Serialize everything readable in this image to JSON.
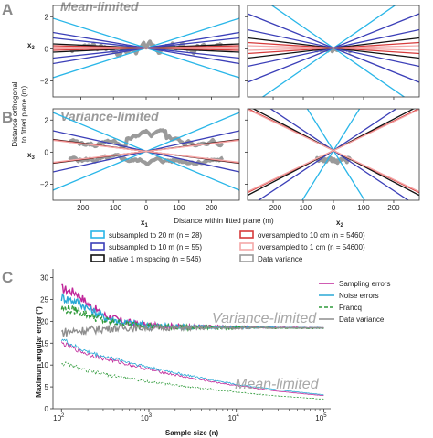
{
  "panel_labels": {
    "a": "A",
    "b": "B",
    "c": "C"
  },
  "regimes": {
    "mean": "Mean-limited",
    "variance": "Variance-limited"
  },
  "axes": {
    "ylabel_top": "Distance orthogonal",
    "ylabel_bottom": "to fitted plane (m)",
    "x3_main": "x",
    "x3_sub": "3",
    "x1_main": "x",
    "x1_sub": "1",
    "x2_main": "x",
    "x2_sub": "2",
    "xlabel_mid": "Distance within fitted plane (m)",
    "ab_yticks": [
      "2",
      "0",
      "−2"
    ],
    "ab_xticks": [
      "−200",
      "−100",
      "0",
      "100",
      "200"
    ],
    "c_ylabel": "Maximum angular error (°)",
    "c_xlabel": "Sample size (n)",
    "c_yticks": [
      "0",
      "5",
      "10",
      "15",
      "20",
      "25",
      "30"
    ],
    "c_xticks": [
      {
        "base": "10",
        "exp": "2"
      },
      {
        "base": "10",
        "exp": "3"
      },
      {
        "base": "10",
        "exp": "4"
      },
      {
        "base": "10",
        "exp": "5"
      }
    ]
  },
  "legend_ab": [
    {
      "label": "subsampled to 20 m (n = 28)",
      "color": "#29b6e8"
    },
    {
      "label": "subsampled to 10 m (n = 55)",
      "color": "#3b3fb8"
    },
    {
      "label": "native 1 m spacing (n = 546)",
      "color": "#111111"
    },
    {
      "label": "oversampled to 10 cm (n = 5460)",
      "color": "#d63a3a"
    },
    {
      "label": "oversampled to 1 cm (n = 54600)",
      "color": "#f4a8a8"
    },
    {
      "label": "Data variance",
      "color": "#9a9a9a"
    }
  ],
  "legend_c": [
    {
      "label": "Sampling errors",
      "color": "#c0279a"
    },
    {
      "label": "Noise errors",
      "color": "#2aa9d6"
    },
    {
      "label": "Francq",
      "color": "#2f9a3a"
    },
    {
      "label": "Data variance",
      "color": "#8e8e8e"
    }
  ],
  "chart_data": [
    {
      "panel": "A-left",
      "type": "line",
      "title": "Mean-limited",
      "xlabel": "x1",
      "ylabel": "x3",
      "xlim": [
        -285,
        285
      ],
      "ylim": [
        -3.0,
        2.7
      ],
      "series": [
        {
          "color": "#29b6e8",
          "slopes": [
            0.0065,
            -0.0065
          ]
        },
        {
          "color": "#3b3fb8",
          "slopes": [
            0.0022,
            -0.0022,
            0.0034,
            -0.0034
          ]
        },
        {
          "color": "#111111",
          "slopes": [
            0.0009,
            -0.0009
          ]
        },
        {
          "color": "#d63a3a",
          "slopes": [
            0.0005,
            -0.0005
          ]
        },
        {
          "color": "#f4a8a8",
          "slopes": [
            0.0002,
            -0.0002
          ]
        }
      ],
      "lines_intercept": 0.05
    },
    {
      "panel": "A-right",
      "type": "line",
      "xlabel": "x2",
      "ylabel": "x3",
      "xlim": [
        -285,
        285
      ],
      "ylim": [
        -3.0,
        2.7
      ],
      "series": [
        {
          "color": "#29b6e8",
          "slopes": [
            0.013,
            -0.013
          ]
        },
        {
          "color": "#3b3fb8",
          "slopes": [
            0.0075,
            -0.0075,
            0.004,
            -0.004
          ]
        },
        {
          "color": "#111111",
          "slopes": [
            0.0022,
            -0.0022
          ]
        },
        {
          "color": "#d63a3a",
          "slopes": [
            0.0012,
            -0.0012
          ]
        },
        {
          "color": "#f4a8a8",
          "slopes": [
            0.0005,
            -0.0005
          ]
        }
      ],
      "lines_intercept": 0.05
    },
    {
      "panel": "B-left",
      "type": "line",
      "title": "Variance-limited",
      "xlabel": "x1",
      "ylabel": "x3",
      "xlim": [
        -285,
        285
      ],
      "ylim": [
        -3.0,
        2.7
      ],
      "series": [
        {
          "color": "#29b6e8",
          "slopes": [
            0.0085,
            -0.0085
          ]
        },
        {
          "color": "#3b3fb8",
          "slopes": [
            0.0045,
            -0.0045
          ]
        },
        {
          "color": "#111111",
          "slopes": [
            0.0026,
            -0.0026
          ]
        },
        {
          "color": "#d63a3a",
          "slopes": [
            0.0025,
            -0.0025
          ]
        },
        {
          "color": "#f4a8a8",
          "slopes": [
            0.0024,
            -0.0024
          ]
        }
      ],
      "lines_intercept": 0.05
    },
    {
      "panel": "B-right",
      "type": "line",
      "xlabel": "x2",
      "ylabel": "x3",
      "xlim": [
        -285,
        285
      ],
      "ylim": [
        -3.0,
        2.7
      ],
      "series": [
        {
          "color": "#29b6e8",
          "slopes": [
            0.03,
            -0.03
          ]
        },
        {
          "color": "#3b3fb8",
          "slopes": [
            0.0125,
            -0.0125
          ]
        },
        {
          "color": "#111111",
          "slopes": [
            0.0098,
            -0.0098
          ]
        },
        {
          "color": "#d63a3a",
          "slopes": [
            0.0092,
            -0.0092
          ]
        },
        {
          "color": "#f4a8a8",
          "slopes": [
            0.009,
            -0.009
          ]
        }
      ],
      "lines_intercept": 0.1
    },
    {
      "panel": "C",
      "type": "line",
      "xlabel": "Sample size (n)",
      "ylabel": "Maximum angular error (°)",
      "xscale": "log",
      "xlim": [
        80,
        120000
      ],
      "ylim": [
        0,
        32
      ],
      "regimes": [
        "Variance-limited",
        "Mean-limited"
      ],
      "series": [
        {
          "name": "Sampling errors",
          "regime": "Variance-limited",
          "x": [
            100,
            150,
            200,
            300,
            500,
            1000,
            3000,
            10000,
            100000
          ],
          "y": [
            27.5,
            26.5,
            24.0,
            21.5,
            20.0,
            19.0,
            18.8,
            18.7,
            18.5
          ]
        },
        {
          "name": "Noise errors",
          "regime": "Variance-limited",
          "x": [
            100,
            150,
            200,
            300,
            500,
            1000,
            3000,
            10000,
            100000
          ],
          "y": [
            25.5,
            24.5,
            23.0,
            21.0,
            19.8,
            19.0,
            18.8,
            18.6,
            18.5
          ]
        },
        {
          "name": "Francq",
          "regime": "Variance-limited",
          "x": [
            100,
            150,
            200,
            300,
            500,
            1000,
            3000,
            10000,
            100000
          ],
          "y": [
            23.0,
            22.5,
            21.5,
            20.2,
            19.5,
            18.9,
            18.6,
            18.5,
            18.4
          ]
        },
        {
          "name": "Data variance",
          "regime": "Variance-limited",
          "x": [
            100,
            150,
            200,
            300,
            500,
            1000,
            3000,
            10000,
            100000
          ],
          "y": [
            17.5,
            17.8,
            18.0,
            18.3,
            18.5,
            18.5,
            18.5,
            18.5,
            18.5
          ]
        },
        {
          "name": "Sampling errors",
          "regime": "Mean-limited",
          "x": [
            100,
            150,
            200,
            300,
            500,
            1000,
            3000,
            10000,
            30000,
            100000
          ],
          "y": [
            15.0,
            13.5,
            12.5,
            11.5,
            10.5,
            9.0,
            7.0,
            5.3,
            4.0,
            3.0
          ]
        },
        {
          "name": "Noise errors",
          "regime": "Mean-limited",
          "x": [
            100,
            150,
            200,
            300,
            500,
            1000,
            3000,
            10000,
            30000,
            100000
          ],
          "y": [
            16.0,
            14.0,
            13.0,
            12.0,
            11.0,
            9.5,
            7.5,
            5.6,
            4.3,
            3.2
          ]
        },
        {
          "name": "Francq",
          "regime": "Mean-limited",
          "x": [
            100,
            150,
            200,
            300,
            500,
            1000,
            3000,
            10000,
            30000,
            100000
          ],
          "y": [
            10.5,
            9.5,
            8.5,
            8.0,
            7.2,
            6.2,
            5.0,
            3.8,
            2.9,
            2.2
          ]
        }
      ]
    }
  ]
}
